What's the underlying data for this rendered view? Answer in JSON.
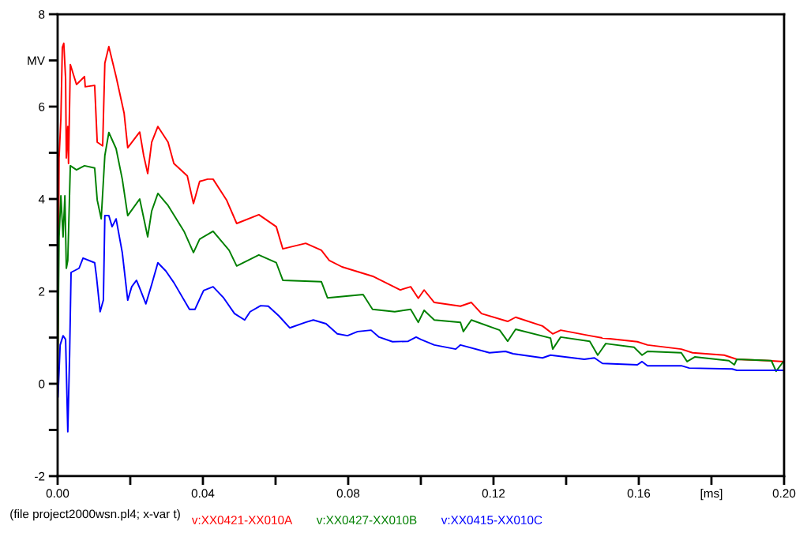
{
  "chart_data": {
    "type": "line",
    "xlim": [
      0,
      0.2
    ],
    "ylim": [
      -2,
      8
    ],
    "xticks": [
      {
        "value": 0,
        "label": "0.00"
      },
      {
        "value": 0.02,
        "label": null
      },
      {
        "value": 0.04,
        "label": "0.04"
      },
      {
        "value": 0.06,
        "label": null
      },
      {
        "value": 0.08,
        "label": "0.08"
      },
      {
        "value": 0.1,
        "label": null
      },
      {
        "value": 0.12,
        "label": "0.12"
      },
      {
        "value": 0.14,
        "label": null
      },
      {
        "value": 0.16,
        "label": "0.16"
      },
      {
        "value": 0.18,
        "label": "[ms]"
      },
      {
        "value": 0.2,
        "label": "0.20"
      }
    ],
    "yticks": [
      -2,
      {
        "value": -1,
        "label": null
      },
      0,
      {
        "value": 1,
        "label": null
      },
      2,
      {
        "value": 3,
        "label": null
      },
      4,
      {
        "value": 5,
        "label": null
      },
      6,
      {
        "value": 7,
        "label": "MV"
      },
      8
    ],
    "grid": false,
    "legend": "bottom",
    "line_style": "solid",
    "marker": "none",
    "annotations": [
      "(file project2000wsn.pl4; x-var t)"
    ],
    "series": [
      {
        "name": "v:XX0421-XX010A",
        "color": "#ff0000",
        "x": [
          0,
          0.0004,
          0.0009,
          0.0013,
          0.0017,
          0.0022,
          0.0024,
          0.0028,
          0.003,
          0.0035,
          0.0052,
          0.0074,
          0.0076,
          0.0102,
          0.0109,
          0.0124,
          0.013,
          0.0141,
          0.0161,
          0.0183,
          0.0193,
          0.0226,
          0.0237,
          0.0248,
          0.0259,
          0.0276,
          0.0304,
          0.032,
          0.0357,
          0.0374,
          0.0391,
          0.0413,
          0.0428,
          0.0465,
          0.0493,
          0.0554,
          0.0602,
          0.062,
          0.0683,
          0.0726,
          0.0748,
          0.0783,
          0.087,
          0.0943,
          0.0972,
          0.0993,
          0.1009,
          0.1037,
          0.1109,
          0.1139,
          0.1167,
          0.1239,
          0.1261,
          0.1335,
          0.1363,
          0.1385,
          0.1465,
          0.15,
          0.1596,
          0.1624,
          0.1717,
          0.1748,
          0.1835,
          0.187,
          0.1957,
          0.2
        ],
        "values": [
          0,
          4.89,
          5.74,
          7.28,
          7.37,
          6.6,
          4.89,
          5.57,
          4.77,
          6.91,
          6.48,
          6.65,
          6.43,
          6.46,
          5.23,
          5.15,
          6.94,
          7.3,
          6.65,
          5.86,
          5.11,
          5.45,
          4.94,
          4.55,
          5.23,
          5.57,
          5.23,
          4.77,
          4.5,
          3.9,
          4.38,
          4.43,
          4.43,
          3.98,
          3.47,
          3.66,
          3.4,
          2.92,
          3.04,
          2.89,
          2.67,
          2.53,
          2.32,
          2.03,
          2.1,
          1.85,
          2.03,
          1.76,
          1.68,
          1.76,
          1.52,
          1.35,
          1.44,
          1.25,
          1.08,
          1.16,
          1.04,
          0.99,
          0.91,
          0.84,
          0.75,
          0.67,
          0.62,
          0.53,
          0.5,
          0.48
        ]
      },
      {
        "name": "v:XX0427-XX010B",
        "color": "#008000",
        "x": [
          0,
          0.0004,
          0.0009,
          0.0015,
          0.002,
          0.0024,
          0.0028,
          0.0035,
          0.0052,
          0.0074,
          0.0102,
          0.0109,
          0.012,
          0.013,
          0.0141,
          0.0161,
          0.0178,
          0.0193,
          0.0226,
          0.0248,
          0.0259,
          0.0276,
          0.0304,
          0.0348,
          0.0374,
          0.0391,
          0.0428,
          0.0472,
          0.0493,
          0.0554,
          0.0602,
          0.062,
          0.0726,
          0.0743,
          0.0841,
          0.0867,
          0.0928,
          0.0972,
          0.0993,
          0.1009,
          0.1037,
          0.1109,
          0.1117,
          0.1139,
          0.1217,
          0.1239,
          0.1261,
          0.1357,
          0.1363,
          0.1385,
          0.1465,
          0.1487,
          0.1509,
          0.1587,
          0.1609,
          0.1624,
          0.1717,
          0.1733,
          0.1754,
          0.1848,
          0.1863,
          0.187,
          0.1965,
          0.1978,
          0.2
        ],
        "values": [
          0,
          3.18,
          4.07,
          3.18,
          4.07,
          2.5,
          2.67,
          4.72,
          4.63,
          4.72,
          4.67,
          3.98,
          3.57,
          4.94,
          5.44,
          5.09,
          4.43,
          3.64,
          4.0,
          3.18,
          3.74,
          4.12,
          3.86,
          3.3,
          2.84,
          3.13,
          3.3,
          2.89,
          2.55,
          2.79,
          2.62,
          2.24,
          2.21,
          1.86,
          1.93,
          1.61,
          1.56,
          1.61,
          1.33,
          1.59,
          1.38,
          1.33,
          1.13,
          1.38,
          1.16,
          0.92,
          1.18,
          0.99,
          0.75,
          1.01,
          0.92,
          0.62,
          0.87,
          0.79,
          0.62,
          0.7,
          0.67,
          0.48,
          0.58,
          0.5,
          0.41,
          0.53,
          0.5,
          0.27,
          0.5
        ]
      },
      {
        "name": "v:XX0415-XX010C",
        "color": "#0000ff",
        "x": [
          0,
          0.0001,
          0.0007,
          0.0015,
          0.0022,
          0.0028,
          0.0033,
          0.0037,
          0.0059,
          0.007,
          0.0102,
          0.0107,
          0.0117,
          0.0126,
          0.013,
          0.0141,
          0.015,
          0.0161,
          0.0178,
          0.0193,
          0.0204,
          0.0217,
          0.0226,
          0.0243,
          0.0259,
          0.0276,
          0.0298,
          0.032,
          0.0363,
          0.0378,
          0.0402,
          0.0428,
          0.0457,
          0.0487,
          0.0515,
          0.053,
          0.0559,
          0.058,
          0.0609,
          0.0639,
          0.0683,
          0.0704,
          0.0739,
          0.077,
          0.0798,
          0.0826,
          0.0863,
          0.0885,
          0.0922,
          0.0965,
          0.0987,
          0.1,
          0.1037,
          0.1096,
          0.1109,
          0.1189,
          0.1233,
          0.1254,
          0.1335,
          0.1357,
          0.145,
          0.1478,
          0.15,
          0.1596,
          0.1609,
          0.1624,
          0.1717,
          0.1739,
          0.1857,
          0.187,
          0.2
        ],
        "values": [
          0,
          -0.29,
          0.84,
          1.04,
          0.96,
          -1.04,
          0.62,
          2.41,
          2.5,
          2.72,
          2.62,
          2.32,
          1.56,
          1.81,
          3.64,
          3.64,
          3.4,
          3.57,
          2.84,
          1.81,
          2.1,
          2.24,
          2.07,
          1.73,
          2.15,
          2.62,
          2.44,
          2.19,
          1.61,
          1.61,
          2.02,
          2.1,
          1.86,
          1.52,
          1.38,
          1.56,
          1.69,
          1.68,
          1.47,
          1.21,
          1.33,
          1.38,
          1.3,
          1.08,
          1.04,
          1.13,
          1.16,
          1.01,
          0.91,
          0.92,
          1.01,
          0.96,
          0.84,
          0.75,
          0.84,
          0.67,
          0.7,
          0.65,
          0.56,
          0.62,
          0.53,
          0.56,
          0.44,
          0.41,
          0.48,
          0.39,
          0.39,
          0.34,
          0.32,
          0.29,
          0.29
        ]
      }
    ]
  }
}
